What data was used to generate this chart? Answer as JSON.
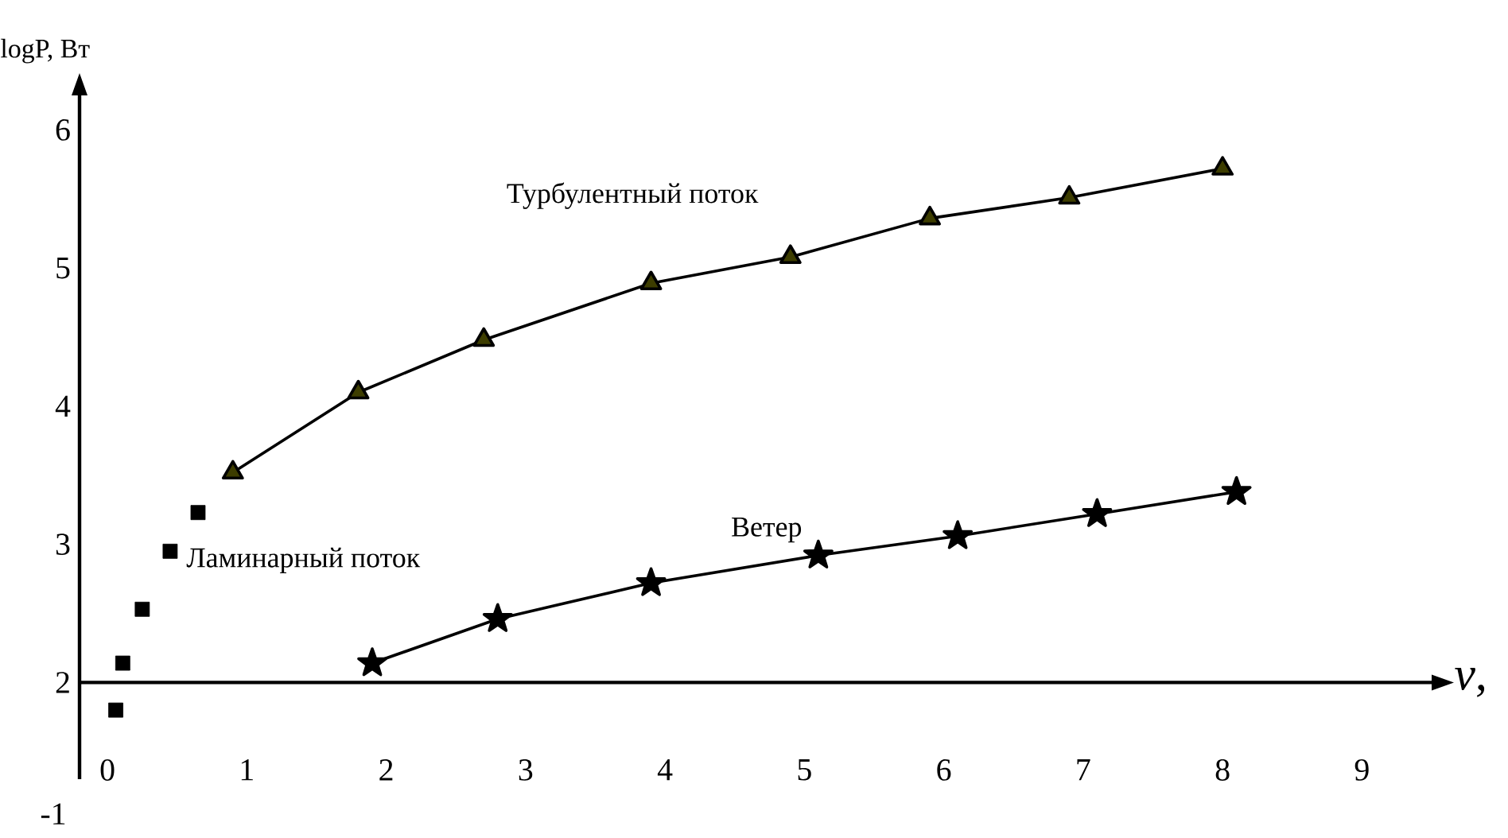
{
  "chart_data": {
    "type": "line",
    "xlabel": "*v*,",
    "ylabel": "logP, Вт",
    "xlim": [
      -0.2,
      9.5
    ],
    "ylim": [
      1.3,
      6.25
    ],
    "xticks": [
      0,
      1,
      2,
      3,
      4,
      5,
      6,
      7,
      8,
      9
    ],
    "yticks": [
      2,
      3,
      4,
      5,
      6
    ],
    "annotations": [
      "-1"
    ],
    "series": [
      {
        "name": "Ламинарный поток",
        "type": "scatter",
        "marker": "square",
        "color": "#000000",
        "x": [
          0.06,
          0.11,
          0.25,
          0.45,
          0.65
        ],
        "values": [
          1.8,
          2.14,
          2.53,
          2.95,
          3.23
        ]
      },
      {
        "name": "Турбулентный поток",
        "marker": "triangle",
        "color": "#3d3d00",
        "x": [
          0.9,
          1.8,
          2.7,
          3.9,
          4.9,
          5.9,
          6.9,
          8.0
        ],
        "values": [
          3.52,
          4.1,
          4.48,
          4.89,
          5.08,
          5.36,
          5.51,
          5.72
        ]
      },
      {
        "name": "Ветер",
        "marker": "star",
        "color": "#000000",
        "x": [
          1.9,
          2.8,
          3.9,
          5.1,
          6.1,
          7.1,
          8.1
        ],
        "values": [
          2.14,
          2.46,
          2.72,
          2.92,
          3.06,
          3.22,
          3.38
        ]
      }
    ]
  }
}
